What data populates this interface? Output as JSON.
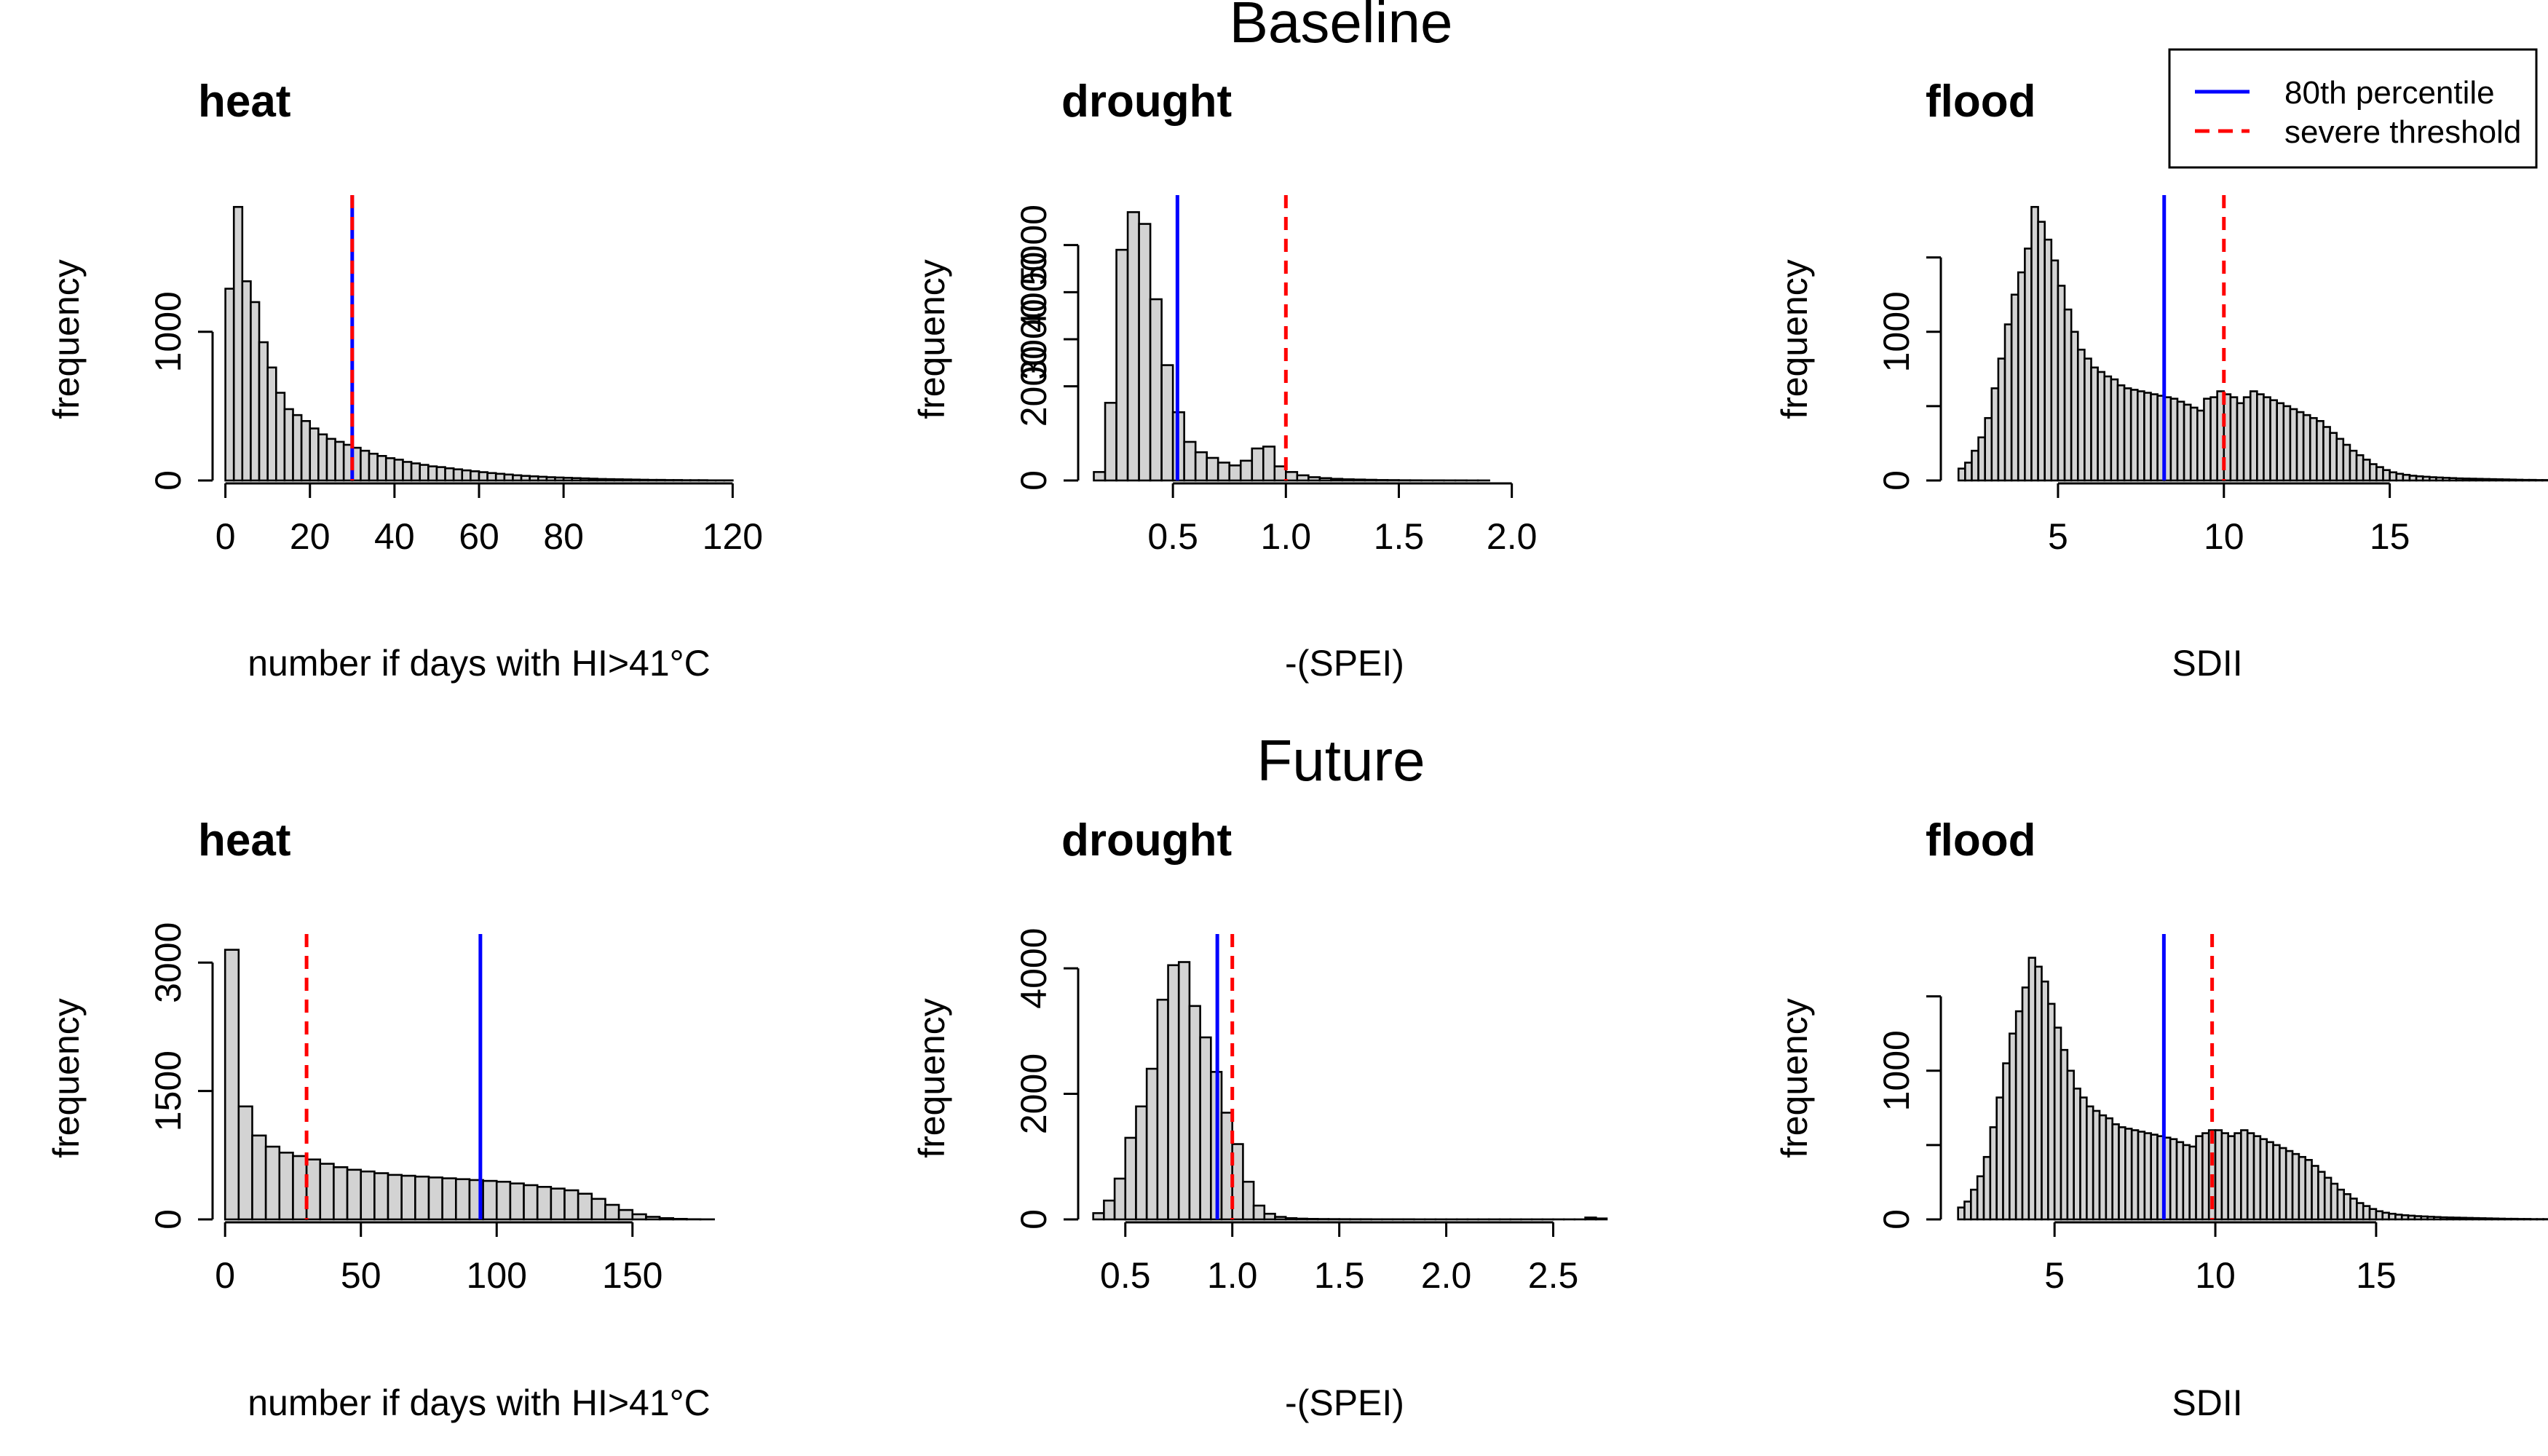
{
  "figure": {
    "rows": [
      {
        "title": "Baseline"
      },
      {
        "title": "Future"
      }
    ],
    "legend": {
      "items": [
        {
          "label": "80th percentile",
          "color": "#0000ff",
          "style": "solid"
        },
        {
          "label": "severe threshold",
          "color": "#ff0000",
          "style": "dashed"
        }
      ],
      "placement": "top-right"
    },
    "colors": {
      "bar_fill": "#d3d3d3",
      "bar_stroke": "#000000",
      "percentile_line": "#0000ff",
      "threshold_line": "#ff0000"
    }
  },
  "chart_data": [
    {
      "type": "bar",
      "subtype": "histogram",
      "row": "Baseline",
      "title": "heat",
      "xlabel": "number if days with HI>41°C",
      "ylabel": "frequency",
      "xlim": [
        -2,
        122
      ],
      "ylim": [
        0,
        1900
      ],
      "xticks": [
        0,
        20,
        40,
        60,
        80,
        120
      ],
      "yticks": [
        0,
        1000
      ],
      "bins": {
        "start": 0,
        "width": 2
      },
      "values": [
        1290,
        1840,
        1340,
        1200,
        930,
        760,
        590,
        480,
        440,
        400,
        350,
        310,
        280,
        260,
        240,
        220,
        200,
        180,
        165,
        150,
        140,
        125,
        115,
        105,
        95,
        90,
        82,
        75,
        68,
        62,
        56,
        50,
        45,
        40,
        35,
        31,
        28,
        25,
        22,
        20,
        18,
        16,
        14,
        12,
        10,
        9,
        8,
        7,
        6,
        5,
        4,
        4,
        3,
        3,
        2,
        2,
        2,
        1,
        1,
        1
      ],
      "percentile_80": 30,
      "severe_threshold": 30
    },
    {
      "type": "bar",
      "subtype": "histogram",
      "row": "Baseline",
      "title": "drought",
      "xlabel": "-(SPEI)",
      "ylabel": "frequency",
      "xlim": [
        0.1,
        2.42
      ],
      "ylim": [
        0,
        6000
      ],
      "xticks": [
        0.5,
        1.0,
        1.5,
        2.0
      ],
      "yticks": [
        0,
        2000,
        3000,
        4000,
        5000
      ],
      "tick_labels_x": [
        "0.5",
        "1.0",
        "1.5",
        "2.0"
      ],
      "tick_labels_y": [
        "0",
        "2000",
        "3000",
        "4000",
        "5000"
      ],
      "bins": {
        "start": 0.15,
        "width": 0.05
      },
      "values": [
        180,
        1650,
        4900,
        5700,
        5450,
        3850,
        2450,
        1450,
        820,
        600,
        480,
        380,
        320,
        420,
        680,
        720,
        300,
        180,
        110,
        70,
        50,
        35,
        25,
        20,
        15,
        10,
        8,
        5,
        4,
        3,
        3,
        2,
        2,
        1,
        1
      ],
      "percentile_80": 0.52,
      "severe_threshold": 1.0
    },
    {
      "type": "bar",
      "subtype": "histogram",
      "row": "Baseline",
      "title": "flood",
      "xlabel": "SDII",
      "ylabel": "frequency",
      "xlim": [
        1.6,
        17.4
      ],
      "ylim": [
        0,
        1900
      ],
      "xticks": [
        5,
        10,
        15
      ],
      "yticks": [
        0,
        500,
        1000,
        1500
      ],
      "tick_labels_y": [
        "0",
        "",
        "1000",
        ""
      ],
      "bins": {
        "start": 2.0,
        "width": 0.2
      },
      "values": [
        80,
        120,
        200,
        290,
        420,
        620,
        820,
        1050,
        1250,
        1400,
        1560,
        1840,
        1740,
        1620,
        1480,
        1310,
        1150,
        1000,
        880,
        820,
        760,
        730,
        700,
        680,
        640,
        620,
        610,
        600,
        590,
        580,
        570,
        560,
        550,
        530,
        510,
        490,
        470,
        550,
        560,
        600,
        580,
        560,
        520,
        560,
        600,
        580,
        560,
        540,
        520,
        500,
        480,
        460,
        440,
        420,
        400,
        360,
        320,
        280,
        240,
        200,
        170,
        140,
        110,
        90,
        70,
        55,
        45,
        38,
        32,
        28,
        25,
        22,
        20,
        18,
        16,
        14,
        13,
        12,
        11,
        10,
        9,
        8,
        7,
        6,
        5,
        4,
        4,
        3,
        3,
        2,
        2,
        2,
        1,
        1,
        1,
        1
      ],
      "percentile_80": 8.2,
      "severe_threshold": 10
    },
    {
      "type": "bar",
      "subtype": "histogram",
      "row": "Future",
      "title": "heat",
      "xlabel": "number if days with HI>41°C",
      "ylabel": "frequency",
      "xlim": [
        -3,
        190
      ],
      "ylim": [
        0,
        3300
      ],
      "xticks": [
        0,
        50,
        100,
        150
      ],
      "yticks": [
        0,
        1500,
        3000
      ],
      "bins": {
        "start": 0,
        "width": 5
      },
      "values": [
        3150,
        1320,
        980,
        850,
        780,
        740,
        700,
        650,
        610,
        580,
        560,
        540,
        520,
        510,
        500,
        490,
        480,
        470,
        460,
        450,
        440,
        420,
        400,
        380,
        360,
        340,
        300,
        240,
        170,
        110,
        60,
        30,
        15,
        6,
        2,
        1
      ],
      "percentile_80": 94,
      "severe_threshold": 30
    },
    {
      "type": "bar",
      "subtype": "histogram",
      "row": "Future",
      "title": "drought",
      "xlabel": "-(SPEI)",
      "ylabel": "frequency",
      "xlim": [
        0.3,
        2.75
      ],
      "ylim": [
        0,
        4500
      ],
      "xticks": [
        0.5,
        1.0,
        1.5,
        2.0,
        2.5
      ],
      "yticks": [
        0,
        2000,
        4000
      ],
      "tick_labels_x": [
        "0.5",
        "1.0",
        "1.5",
        "2.0",
        "2.5"
      ],
      "bins": {
        "start": 0.35,
        "width": 0.05
      },
      "values": [
        100,
        300,
        650,
        1300,
        1800,
        2400,
        3500,
        4050,
        4100,
        3400,
        2900,
        2350,
        1700,
        1200,
        600,
        220,
        90,
        40,
        20,
        12,
        8,
        6,
        5,
        4,
        3,
        3,
        2,
        2,
        2,
        2,
        1,
        1,
        1,
        1,
        1,
        1,
        1,
        1,
        1,
        1,
        1,
        1,
        1,
        1,
        1,
        1,
        30,
        15
      ],
      "percentile_80": 0.93,
      "severe_threshold": 1.0
    },
    {
      "type": "bar",
      "subtype": "histogram",
      "row": "Future",
      "title": "flood",
      "xlabel": "SDII",
      "ylabel": "frequency",
      "xlim": [
        1.6,
        17.9
      ],
      "ylim": [
        0,
        1900
      ],
      "xticks": [
        5,
        10,
        15
      ],
      "yticks": [
        0,
        500,
        1000,
        1500
      ],
      "tick_labels_y": [
        "0",
        "",
        "1000",
        ""
      ],
      "bins": {
        "start": 2.0,
        "width": 0.2
      },
      "values": [
        80,
        120,
        200,
        290,
        420,
        620,
        820,
        1050,
        1250,
        1400,
        1560,
        1760,
        1700,
        1600,
        1450,
        1290,
        1140,
        1000,
        880,
        820,
        760,
        730,
        700,
        680,
        640,
        620,
        610,
        600,
        590,
        580,
        570,
        560,
        550,
        540,
        520,
        500,
        490,
        560,
        580,
        600,
        600,
        580,
        560,
        580,
        600,
        580,
        560,
        540,
        520,
        500,
        480,
        460,
        440,
        420,
        400,
        360,
        320,
        280,
        240,
        200,
        170,
        140,
        110,
        90,
        70,
        55,
        45,
        38,
        32,
        28,
        25,
        22,
        20,
        18,
        16,
        14,
        13,
        12,
        11,
        10,
        9,
        8,
        7,
        6,
        5,
        4,
        4,
        3,
        3,
        2,
        2,
        2,
        1,
        1,
        1,
        1
      ],
      "percentile_80": 8.4,
      "severe_threshold": 9.9
    }
  ]
}
